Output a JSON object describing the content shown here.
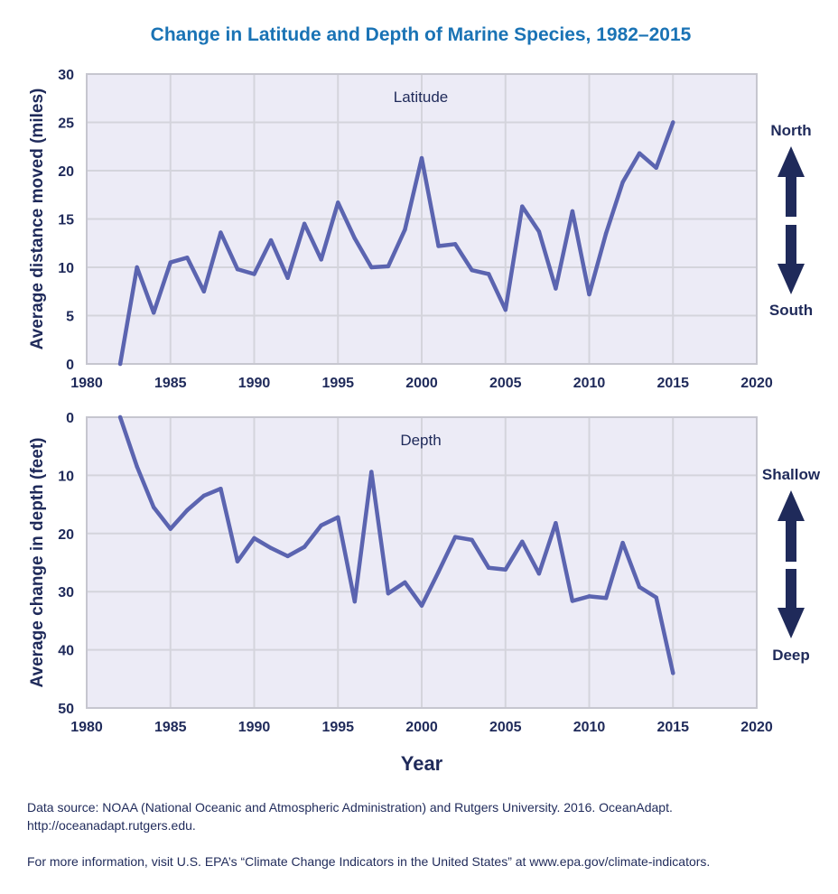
{
  "chart_data": {
    "type": "line",
    "title": "Change in Latitude and Depth of Marine Species, 1982–2015",
    "xlabel": "Year",
    "x_ticks": [
      "1980",
      "1985",
      "1990",
      "1995",
      "2000",
      "2005",
      "2010",
      "2015",
      "2020"
    ],
    "xlim": [
      1980,
      2020
    ],
    "line_color": "#5b64b0",
    "panels": [
      {
        "label": "Latitude",
        "ylabel": "Average distance moved (miles)",
        "ylim": [
          0,
          30
        ],
        "inverted": false,
        "y_ticks": [
          "0",
          "5",
          "10",
          "15",
          "20",
          "25",
          "30"
        ],
        "direction_labels": {
          "up": "North",
          "down": "South"
        },
        "x": [
          1982,
          1983,
          1984,
          1985,
          1986,
          1987,
          1988,
          1989,
          1990,
          1991,
          1992,
          1993,
          1994,
          1995,
          1996,
          1997,
          1998,
          1999,
          2000,
          2001,
          2002,
          2003,
          2004,
          2005,
          2006,
          2007,
          2008,
          2009,
          2010,
          2011,
          2012,
          2013,
          2014,
          2015
        ],
        "values": [
          0,
          10,
          5.3,
          10.5,
          11,
          7.5,
          13.6,
          9.8,
          9.3,
          12.8,
          8.9,
          14.5,
          10.8,
          16.7,
          13,
          10,
          10.1,
          13.9,
          21.3,
          12.2,
          12.4,
          9.7,
          9.3,
          5.6,
          16.3,
          13.7,
          7.8,
          15.8,
          7.2,
          13.5,
          18.8,
          21.8,
          20.3,
          25
        ]
      },
      {
        "label": "Depth",
        "ylabel": "Average change in depth (feet)",
        "ylim": [
          0,
          50
        ],
        "inverted": true,
        "y_ticks": [
          "0",
          "10",
          "20",
          "30",
          "40",
          "50"
        ],
        "direction_labels": {
          "up": "Shallow",
          "down": "Deep"
        },
        "x": [
          1982,
          1983,
          1984,
          1985,
          1986,
          1987,
          1988,
          1989,
          1990,
          1991,
          1992,
          1993,
          1994,
          1995,
          1996,
          1997,
          1998,
          1999,
          2000,
          2001,
          2002,
          2003,
          2004,
          2005,
          2006,
          2007,
          2008,
          2009,
          2010,
          2011,
          2012,
          2013,
          2014,
          2015
        ],
        "values": [
          0,
          8.5,
          15.5,
          19.2,
          16,
          13.5,
          12.3,
          24.8,
          20.8,
          22.5,
          23.9,
          22.3,
          18.6,
          17.2,
          31.7,
          9.4,
          30.3,
          28.4,
          32.4,
          26.6,
          20.6,
          21.1,
          25.9,
          26.2,
          21.4,
          26.9,
          18.2,
          31.6,
          30.8,
          31.1,
          21.6,
          29.2,
          31,
          44
        ]
      }
    ]
  },
  "footer": {
    "source_line1": "Data source: NOAA (National Oceanic and Atmospheric Administration) and Rutgers University. 2016. OceanAdapt.",
    "source_line2": "http://oceanadapt.rutgers.edu.",
    "more_info": "For more information, visit U.S. EPA’s “Climate Change Indicators in the United States” at www.epa.gov/climate-indicators."
  }
}
